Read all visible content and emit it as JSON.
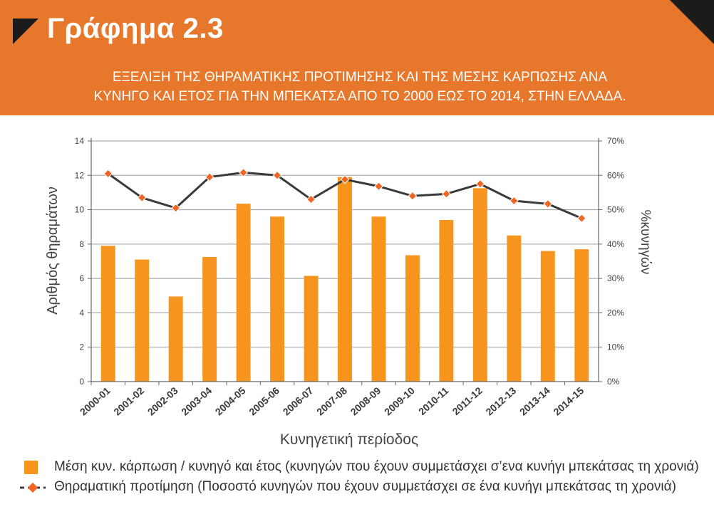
{
  "header": {
    "title": "Γράφημα 2.3",
    "subtitle_line1": "ΕΞΕΛΙΞΗ ΤΗΣ ΘΗΡΑΜΑΤΙΚΗΣ ΠΡΟΤΙΜΗΣΗΣ ΚΑΙ ΤΗΣ ΜΕΣΗΣ ΚΑΡΠΩΣΗΣ ΑΝΑ",
    "subtitle_line2": "ΚΥΝΗΓΟ ΚΑΙ ΕΤΟΣ ΓΙΑ ΤΗΝ ΜΠΕΚΑΤΣΑ ΑΠΟ ΤΟ 2000 ΕΩΣ ΤΟ 2014, ΣΤΗΝ ΕΛΛΑΔΑ."
  },
  "colors": {
    "header_bg": "#e7772b",
    "bar": "#f7941d",
    "line": "#3a3a3a",
    "marker": "#f26522",
    "corner": "#1b1b1b"
  },
  "chart_data": {
    "type": "bar+line",
    "categories": [
      "2000-01",
      "2001-02",
      "2002-03",
      "2003-04",
      "2004-05",
      "2005-06",
      "2006-07",
      "2007-08",
      "2008-09",
      "2009-10",
      "2010-11",
      "2011-12",
      "2012-13",
      "2013-14",
      "2014-15"
    ],
    "series": [
      {
        "name": "Μέση κυν. κάρπωση / κυνηγό και έτος (κυνηγών που έχουν συμμετάσχει σ’ενα κυνήγι μπεκάτσας τη χρονιά)",
        "type": "bar",
        "axis": "left",
        "values": [
          7.9,
          7.1,
          4.95,
          7.25,
          10.35,
          9.6,
          6.15,
          11.9,
          9.6,
          7.35,
          9.4,
          11.25,
          8.5,
          7.6,
          7.7
        ]
      },
      {
        "name": "Θηραματική προτίμηση (Ποσοστό κυνηγών που έχουν συμμετάσχει σε ένα κυνήγι μπεκάτσας τη χρονιά)",
        "type": "line",
        "axis": "right",
        "values": [
          60.5,
          53.5,
          50.5,
          59.5,
          60.8,
          60.0,
          53.0,
          58.8,
          56.8,
          54.0,
          54.6,
          57.5,
          52.6,
          51.7,
          47.5
        ]
      }
    ],
    "xlabel": "Κυνηγετική περίοδος",
    "ylabel": "Αριθμός θηραμάτων",
    "y2label": "%κυνηγών",
    "ylim": [
      0,
      14
    ],
    "yticks": [
      "0",
      "2",
      "4",
      "6",
      "8",
      "10",
      "12",
      "14"
    ],
    "y2lim": [
      0,
      70
    ],
    "y2ticks": [
      "0%",
      "10%",
      "20%",
      "30%",
      "40%",
      "50%",
      "60%",
      "70%"
    ],
    "grid": true,
    "legend_position": "bottom"
  },
  "legend": {
    "bar_label": "Μέση κυν. κάρπωση / κυνηγό και έτος (κυνηγών που έχουν συμμετάσχει σ’ενα κυνήγι μπεκάτσας τη χρονιά)",
    "line_label": "Θηραματική προτίμηση (Ποσοστό κυνηγών που έχουν συμμετάσχει σε ένα κυνήγι μπεκάτσας τη χρονιά)"
  }
}
